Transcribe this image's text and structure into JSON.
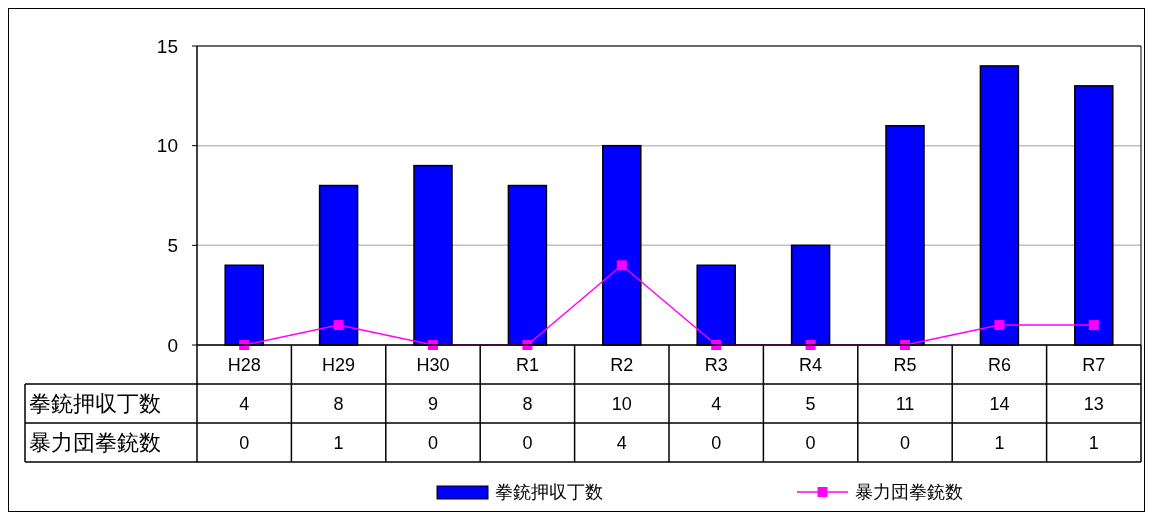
{
  "chart_data": {
    "type": "bar",
    "categories": [
      "H28",
      "H29",
      "H30",
      "R1",
      "R2",
      "R3",
      "R4",
      "R5",
      "R6",
      "R7"
    ],
    "series": [
      {
        "name": "拳銃押収丁数",
        "color": "#0000ff",
        "values": [
          4,
          8,
          9,
          8,
          10,
          4,
          5,
          11,
          14,
          13
        ]
      },
      {
        "name": "暴力団拳銃数",
        "type": "line",
        "color": "#ff00ff",
        "values": [
          0,
          1,
          0,
          0,
          4,
          0,
          0,
          0,
          1,
          1
        ]
      }
    ],
    "ylim": [
      0,
      15
    ],
    "yticks": [
      0,
      5,
      10,
      15
    ],
    "grid": "y",
    "legend": "bottom",
    "marker": "square",
    "data_labels": true
  }
}
